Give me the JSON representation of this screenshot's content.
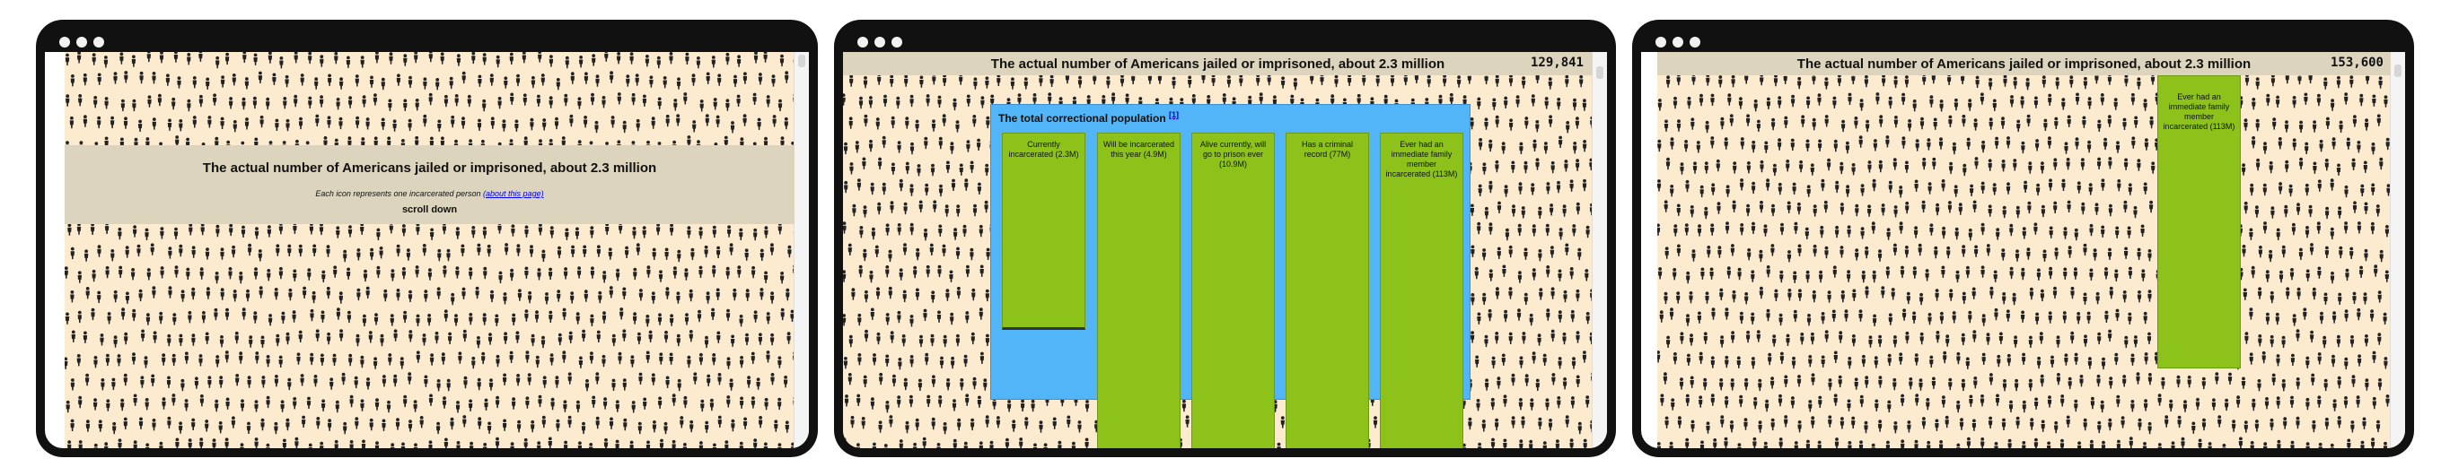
{
  "counter_mid": "129,841",
  "counter_right": "153,600",
  "intro": {
    "title": "The actual number of Americans jailed or imprisoned, about 2.3 million",
    "subtitle": "Each icon represents one incarcerated person",
    "about_link": "(about this page)",
    "scroll_hint": "scroll down"
  },
  "header": {
    "title": "The actual number of Americans jailed or imprisoned, about 2.3 million"
  },
  "panel": {
    "title": "The total correctional population",
    "footnote": "[1]"
  },
  "bars": [
    {
      "label": "Currently incarcerated (2.3M)",
      "value_m": 2.3
    },
    {
      "label": "Will be incarcerated this year (4.9M)",
      "value_m": 4.9
    },
    {
      "label": "Alive currently, will go to prison ever (10.9M)",
      "value_m": 10.9
    },
    {
      "label": "Has a criminal record (77M)",
      "value_m": 77
    },
    {
      "label": "Ever had an immediate family member incarcerated (113M)",
      "value_m": 113
    }
  ],
  "colors": {
    "background": "#fdebd0",
    "header": "#dcd4bc",
    "panel": "#52b5f8",
    "bar": "#8cc21a",
    "frame": "#111111"
  },
  "icons": {
    "person": "person-icon",
    "window_dots": "window-control-icon"
  }
}
